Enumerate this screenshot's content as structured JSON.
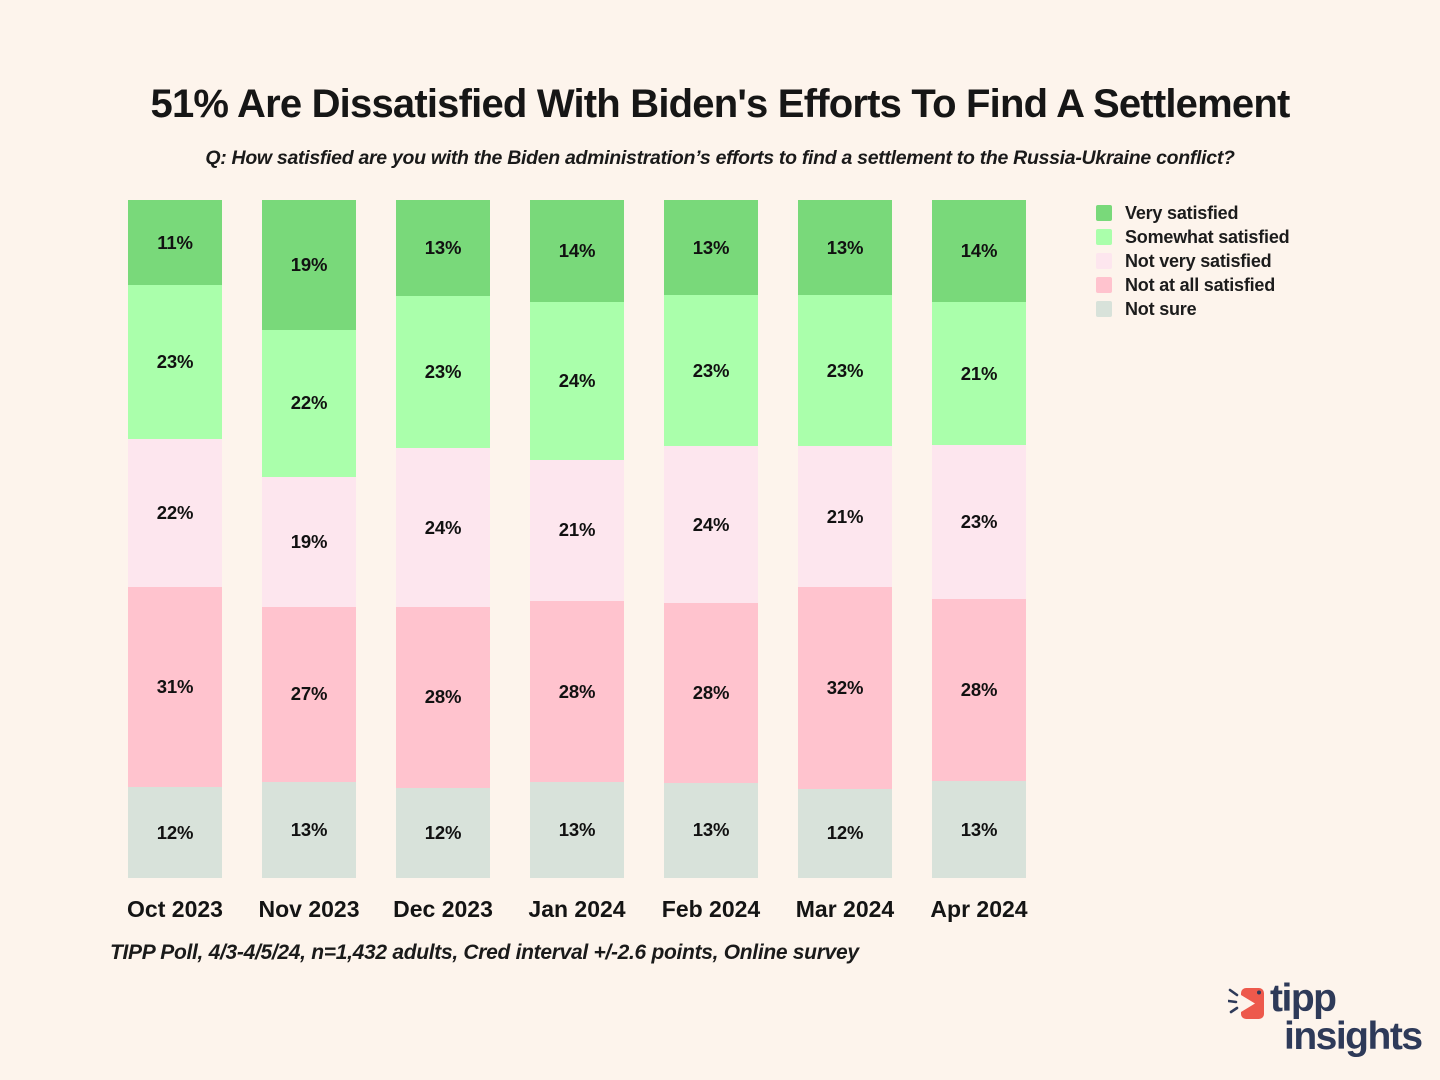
{
  "page": {
    "background_color": "#fdf4ec"
  },
  "title": "51% Are Dissatisfied With Biden's Efforts To Find A Settlement",
  "subtitle": "Q:  How satisfied are you with the Biden administration’s efforts to find a settlement to the Russia-Ukraine conflict?",
  "source_note": "TIPP Poll, 4/3-4/5/24, n=1,432 adults, Cred interval +/-2.6 points, Online survey",
  "logo": {
    "icon": "tipp-arrow-icon",
    "word1": "tipp",
    "word2": "insights",
    "accent_color": "#ed594c",
    "navy_color": "#2e3a59"
  },
  "chart_data": {
    "type": "bar",
    "stacked": true,
    "normalized_percent": true,
    "orientation": "vertical",
    "grid": false,
    "legend_position": "right",
    "value_suffix": "%",
    "categories": [
      "Oct 2023",
      "Nov 2023",
      "Dec 2023",
      "Jan 2024",
      "Feb 2024",
      "Mar 2024",
      "Apr 2024"
    ],
    "series": [
      {
        "name": "Very satisfied",
        "color": "#79d97a",
        "values": [
          11,
          19,
          13,
          14,
          13,
          13,
          14
        ]
      },
      {
        "name": "Somewhat satisfied",
        "color": "#aaffab",
        "values": [
          23,
          22,
          23,
          24,
          23,
          23,
          21
        ]
      },
      {
        "name": "Not very satisfied",
        "color": "#fde6ee",
        "values": [
          22,
          19,
          24,
          21,
          24,
          21,
          23
        ]
      },
      {
        "name": "Not at all satisfied",
        "color": "#ffc3ce",
        "values": [
          31,
          27,
          28,
          28,
          28,
          32,
          28
        ]
      },
      {
        "name": "Not sure",
        "color": "#d8e2da",
        "values": [
          12,
          13,
          12,
          13,
          13,
          12,
          13
        ]
      }
    ]
  }
}
